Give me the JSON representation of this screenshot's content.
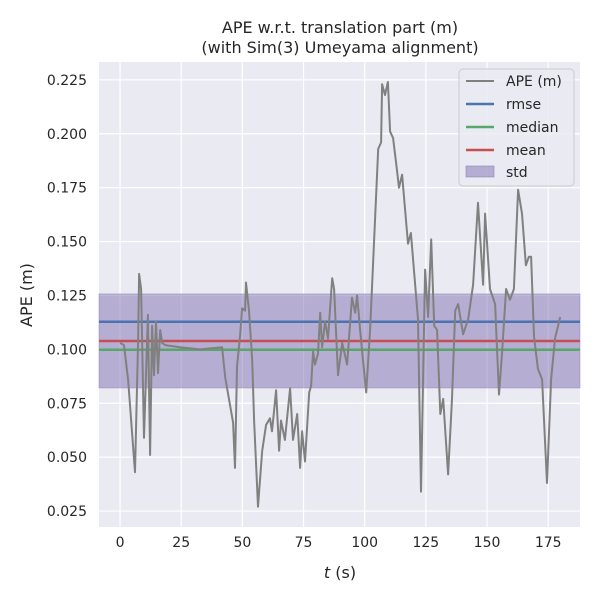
{
  "chart_data": {
    "type": "line",
    "title": "APE w.r.t. translation part (m)",
    "subtitle": "(with Sim(3) Umeyama alignment)",
    "xlabel_italic": "t",
    "xlabel_unit": " (s)",
    "ylabel": "APE (m)",
    "xlim": [
      -8.6,
      188
    ],
    "ylim": [
      0.0176,
      0.2333
    ],
    "xticks": [
      0,
      25,
      50,
      75,
      100,
      125,
      150,
      175
    ],
    "yticks": [
      0.025,
      0.05,
      0.075,
      0.1,
      0.125,
      0.15,
      0.175,
      0.2,
      0.225
    ],
    "ytick_labels": [
      "0.025",
      "0.050",
      "0.075",
      "0.100",
      "0.125",
      "0.150",
      "0.175",
      "0.200",
      "0.225"
    ],
    "grid": true,
    "legend_position": "top-right",
    "colors": {
      "background": "#eaeaf2",
      "ape": "#808080",
      "rmse": "#4c72b0",
      "median": "#55a868",
      "mean": "#c44e52",
      "std": "#8172b2"
    },
    "legend": [
      "APE (m)",
      "rmse",
      "median",
      "mean",
      "std"
    ],
    "stats": {
      "rmse": 0.1128,
      "median": 0.0998,
      "mean": 0.1039,
      "std_low": 0.0821,
      "std_high": 0.1257
    },
    "series": [
      {
        "name": "APE (m)",
        "x": [
          0,
          1.6,
          3.3,
          6.1,
          7.4,
          7.8,
          8.6,
          9.8,
          11.4,
          12.3,
          13.1,
          13.9,
          14.7,
          15.5,
          16.4,
          17.2,
          18.4,
          24.5,
          32.7,
          41.7,
          43,
          46.2,
          47,
          47.8,
          49.1,
          49.9,
          51.1,
          51.5,
          52.7,
          54,
          54.8,
          56.4,
          58.1,
          59.7,
          61.3,
          62.1,
          63.8,
          65,
          65.8,
          67.4,
          69.5,
          70.7,
          72.4,
          73.6,
          74.4,
          75.6,
          77.3,
          78.1,
          78.9,
          79.7,
          80.9,
          81.8,
          82.6,
          83.8,
          85,
          86.7,
          87.5,
          89.1,
          90.8,
          92.8,
          94.8,
          96.1,
          96.9,
          98.1,
          99.3,
          100.6,
          102.2,
          105.5,
          106.7,
          107.1,
          108.3,
          109.5,
          110.4,
          111.6,
          113.2,
          114,
          115.3,
          117.7,
          118.9,
          121.8,
          123,
          124.7,
          125.9,
          127.2,
          128.4,
          129.6,
          130.9,
          132.1,
          134.1,
          135.7,
          137,
          138.2,
          140.2,
          142.3,
          144.3,
          146.3,
          148.4,
          149.2,
          151.2,
          153.3,
          154.9,
          156.1,
          157.8,
          159.4,
          161,
          162.7,
          164.3,
          165.9,
          167.1,
          168,
          169.2,
          170.8,
          172.5,
          174.5,
          176.2,
          177.8,
          179.9
        ],
        "y": [
          0.103,
          0.102,
          0.086,
          0.043,
          0.104,
          0.135,
          0.128,
          0.059,
          0.116,
          0.051,
          0.111,
          0.088,
          0.113,
          0.089,
          0.109,
          0.103,
          0.102,
          0.101,
          0.1,
          0.101,
          0.087,
          0.066,
          0.045,
          0.092,
          0.107,
          0.119,
          0.118,
          0.131,
          0.118,
          0.095,
          0.067,
          0.027,
          0.053,
          0.065,
          0.068,
          0.062,
          0.081,
          0.053,
          0.067,
          0.058,
          0.082,
          0.058,
          0.07,
          0.045,
          0.062,
          0.048,
          0.08,
          0.083,
          0.099,
          0.093,
          0.098,
          0.117,
          0.101,
          0.113,
          0.105,
          0.133,
          0.128,
          0.088,
          0.103,
          0.093,
          0.124,
          0.117,
          0.125,
          0.109,
          0.095,
          0.08,
          0.109,
          0.193,
          0.196,
          0.223,
          0.218,
          0.224,
          0.201,
          0.198,
          0.183,
          0.175,
          0.181,
          0.149,
          0.154,
          0.114,
          0.034,
          0.137,
          0.115,
          0.151,
          0.111,
          0.109,
          0.07,
          0.077,
          0.042,
          0.077,
          0.118,
          0.121,
          0.107,
          0.114,
          0.13,
          0.168,
          0.13,
          0.163,
          0.128,
          0.121,
          0.079,
          0.098,
          0.128,
          0.123,
          0.128,
          0.174,
          0.163,
          0.139,
          0.143,
          0.143,
          0.106,
          0.091,
          0.086,
          0.038,
          0.086,
          0.105,
          0.115
        ]
      }
    ]
  }
}
